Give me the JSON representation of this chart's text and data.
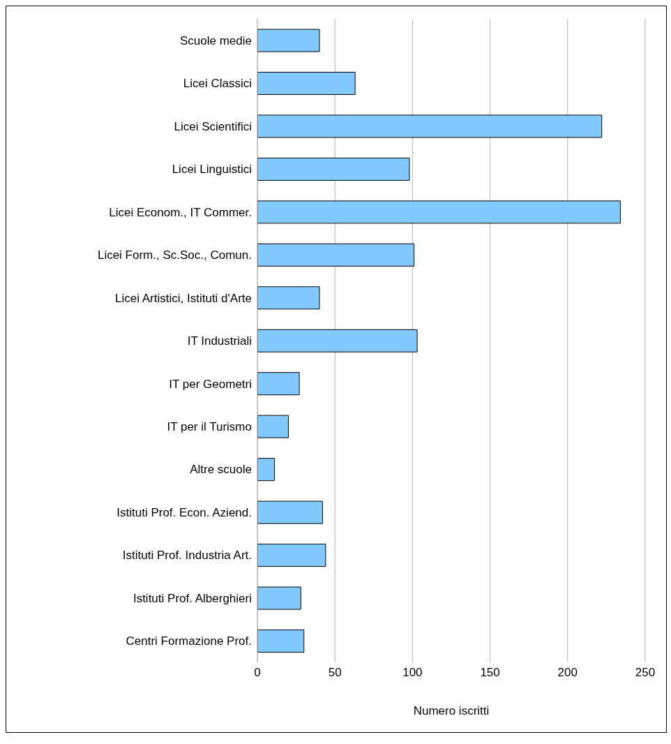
{
  "chart_data": {
    "type": "bar",
    "orientation": "horizontal",
    "xlabel": "Numero iscritti",
    "categories": [
      "Scuole medie",
      "Licei Classici",
      "Licei Scientifici",
      "Licei Linguistici",
      "Licei Econom., IT Commer.",
      "Licei Form., Sc.Soc., Comun.",
      "Licei Artistici, Istituti d'Arte",
      "IT Industriali",
      "IT per Geometri",
      "IT per il Turismo",
      "Altre scuole",
      "Istituti Prof. Econ. Aziend.",
      "Istituti Prof. Industria Art.",
      "Istituti Prof. Alberghieri",
      "Centri Formazione Prof."
    ],
    "values": [
      40,
      63,
      222,
      98,
      234,
      101,
      40,
      103,
      27,
      20,
      11,
      42,
      44,
      28,
      30
    ],
    "color": "#81c9ff",
    "xlim": [
      0,
      250
    ],
    "xticks": [
      0,
      50,
      100,
      150,
      200,
      250
    ],
    "grid": "x"
  }
}
